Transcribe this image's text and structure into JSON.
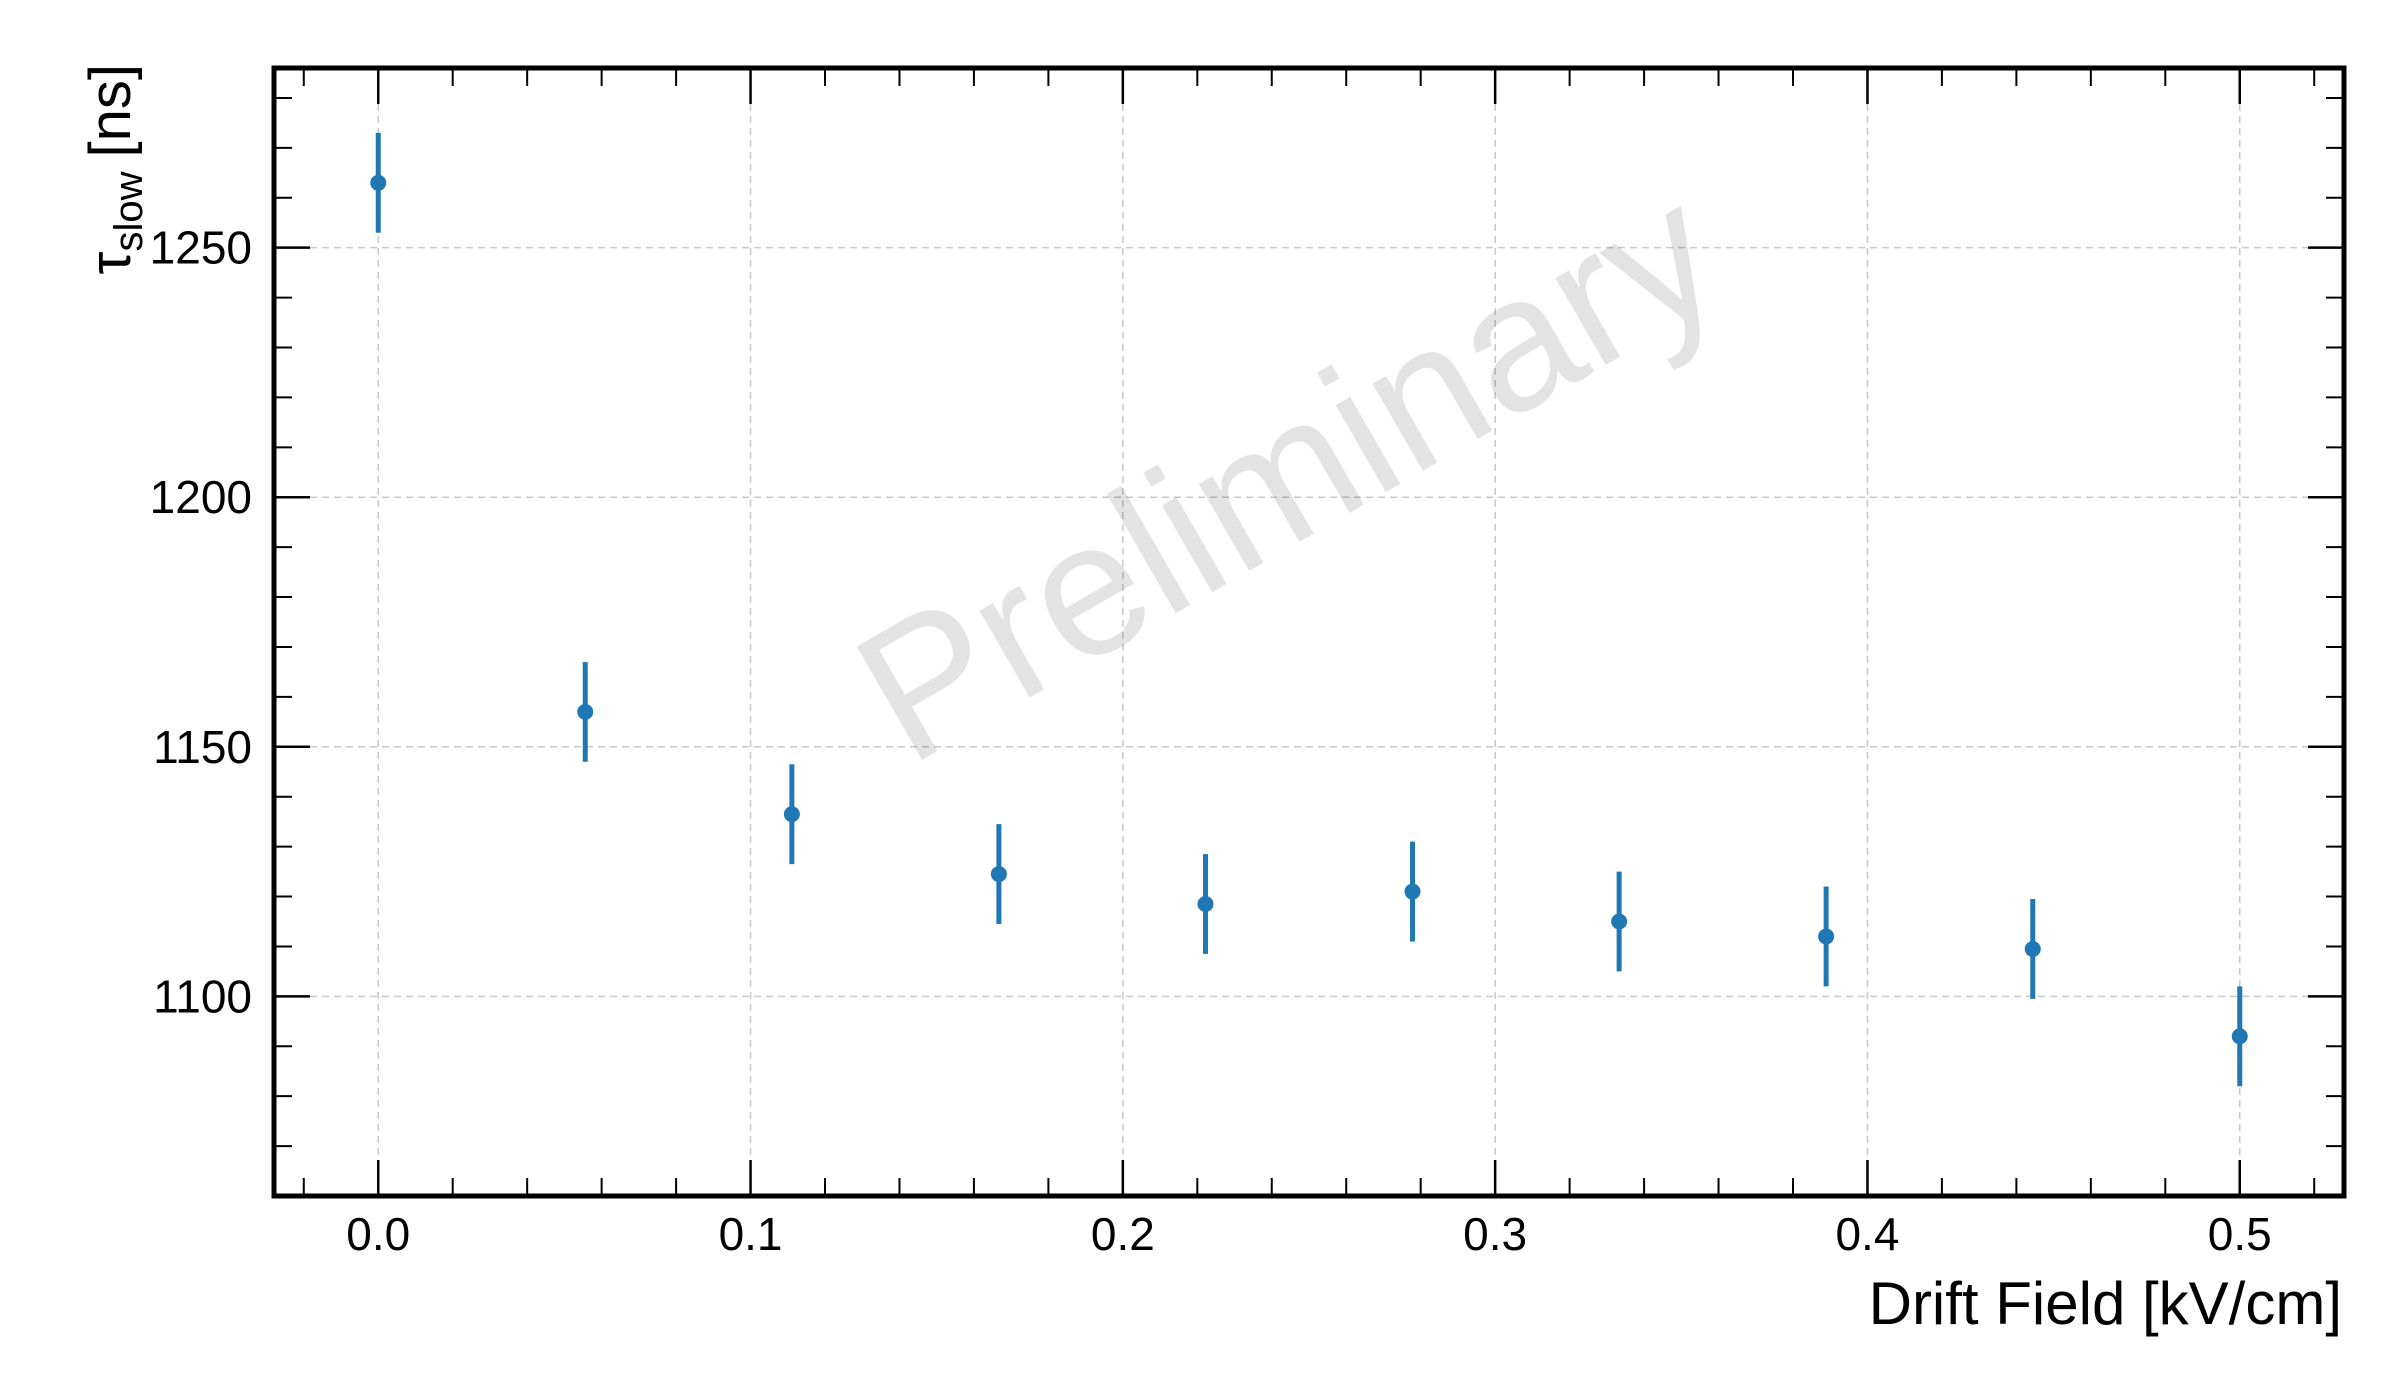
{
  "chart_data": {
    "type": "scatter",
    "title": "",
    "xlabel": "Drift Field [kV/cm]",
    "ylabel": {
      "symbol": "τ",
      "subscript": "slow",
      "unit": "[ns]"
    },
    "xlim": [
      -0.028,
      0.528
    ],
    "ylim": [
      1060,
      1286
    ],
    "x_ticks": [
      0.0,
      0.1,
      0.2,
      0.3,
      0.4,
      0.5
    ],
    "x_tick_labels": [
      "0.0",
      "0.1",
      "0.2",
      "0.3",
      "0.4",
      "0.5"
    ],
    "x_minor_step": 0.02,
    "y_ticks": [
      1100,
      1150,
      1200,
      1250
    ],
    "y_tick_labels": [
      "1100",
      "1150",
      "1200",
      "1250"
    ],
    "y_minor_step": 10,
    "grid": true,
    "watermark": "Preliminary",
    "colors": {
      "series": "#1f77b4",
      "grid": "#c8c8c8",
      "frame": "#000000"
    },
    "series": [
      {
        "x": [
          0.0,
          0.0556,
          0.1111,
          0.1667,
          0.2222,
          0.2778,
          0.3333,
          0.3889,
          0.4444,
          0.5
        ],
        "y": [
          1263,
          1157,
          1136.5,
          1124.5,
          1118.5,
          1121,
          1115,
          1112,
          1109.5,
          1092
        ],
        "yerr": [
          10,
          10,
          10,
          10,
          10,
          10,
          10,
          10,
          10,
          10
        ]
      }
    ]
  }
}
